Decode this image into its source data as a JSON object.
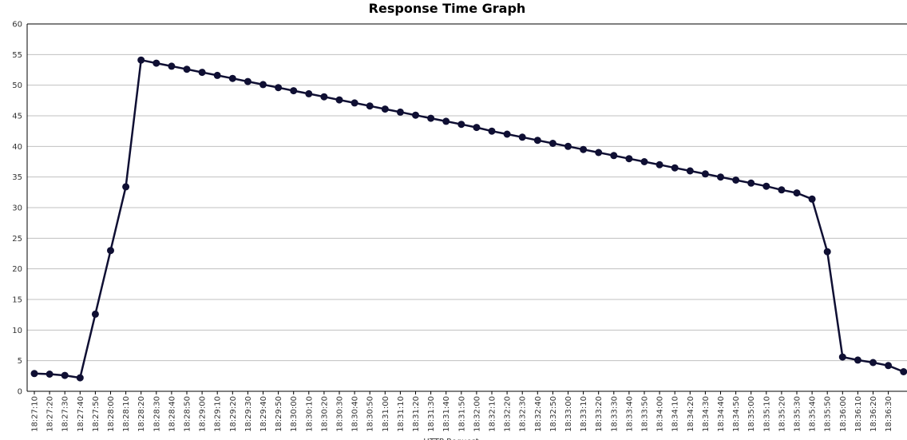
{
  "chart_data": {
    "type": "line",
    "title": "Response Time Graph",
    "xlabel": "HTTP Request",
    "ylabel": "",
    "ylim": [
      0,
      60
    ],
    "yticks": [
      0,
      5,
      10,
      15,
      20,
      25,
      30,
      35,
      40,
      45,
      50,
      55,
      60
    ],
    "grid": true,
    "legend": "none",
    "colors": {
      "line": "#0f0f33",
      "marker": "#0f0f33",
      "grid": "#c0c0c0",
      "axis": "#000000"
    },
    "categories": [
      "18:27:10",
      "18:27:20",
      "18:27:30",
      "18:27:40",
      "18:27:50",
      "18:28:00",
      "18:28:10",
      "18:28:20",
      "18:28:30",
      "18:28:40",
      "18:28:50",
      "18:29:00",
      "18:29:10",
      "18:29:20",
      "18:29:30",
      "18:29:40",
      "18:29:50",
      "18:30:00",
      "18:30:10",
      "18:30:20",
      "18:30:30",
      "18:30:40",
      "18:30:50",
      "18:31:00",
      "18:31:10",
      "18:31:20",
      "18:31:30",
      "18:31:40",
      "18:31:50",
      "18:32:00",
      "18:32:10",
      "18:32:20",
      "18:32:30",
      "18:32:40",
      "18:32:50",
      "18:33:00",
      "18:33:10",
      "18:33:20",
      "18:33:30",
      "18:33:40",
      "18:33:50",
      "18:34:00",
      "18:34:10",
      "18:34:20",
      "18:34:30",
      "18:34:40",
      "18:34:50",
      "18:35:00",
      "18:35:10",
      "18:35:20",
      "18:35:30",
      "18:35:40",
      "18:35:50",
      "18:36:00",
      "18:36:10",
      "18:36:20",
      "18:36:30"
    ],
    "series": [
      {
        "name": "Response Time",
        "values": [
          2.9,
          2.8,
          2.6,
          2.2,
          12.6,
          23.0,
          33.4,
          54.1,
          53.6,
          53.1,
          52.6,
          52.1,
          51.6,
          51.1,
          50.6,
          50.1,
          49.6,
          49.1,
          48.6,
          48.1,
          47.6,
          47.1,
          46.6,
          46.1,
          45.6,
          45.1,
          44.6,
          44.1,
          43.6,
          43.1,
          42.5,
          42.0,
          41.5,
          41.0,
          40.5,
          40.0,
          39.5,
          39.0,
          38.5,
          38.0,
          37.5,
          37.0,
          36.5,
          36.0,
          35.5,
          35.0,
          34.5,
          34.0,
          33.5,
          32.9,
          32.4,
          31.4,
          22.8,
          5.6,
          5.1,
          4.7,
          4.2
        ]
      }
    ],
    "trailing_value": 3.2
  }
}
